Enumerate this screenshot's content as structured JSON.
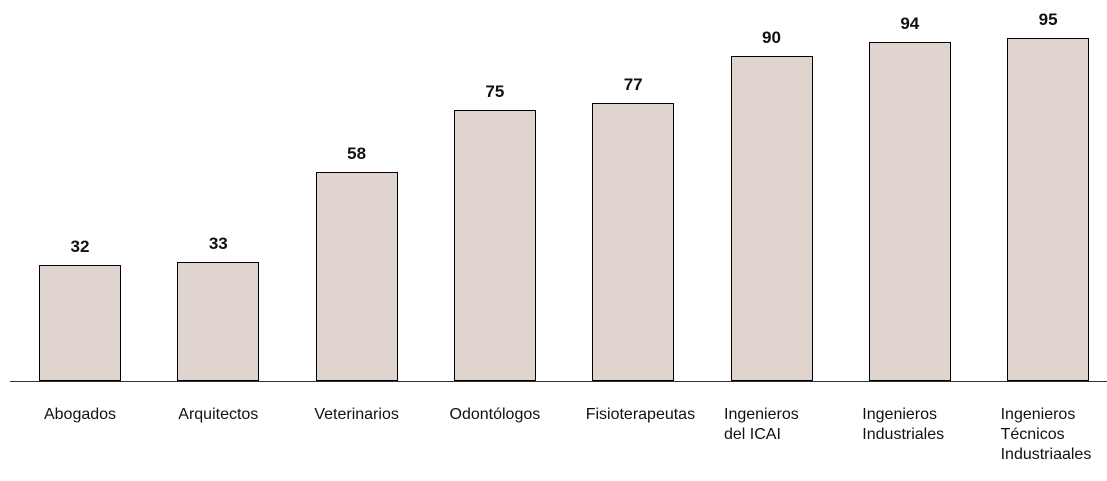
{
  "chart_data": {
    "type": "bar",
    "categories": [
      "Abogados",
      "Arquitectos",
      "Veterinarios",
      "Odontólogos",
      "Fisioterapeutas",
      "Ingenieros del ICAI",
      "Ingenieros Industriales",
      "Ingenieros Técnicos Industriaales"
    ],
    "values": [
      32,
      33,
      58,
      75,
      77,
      90,
      94,
      95
    ],
    "color": "#dfd5ce"
  }
}
